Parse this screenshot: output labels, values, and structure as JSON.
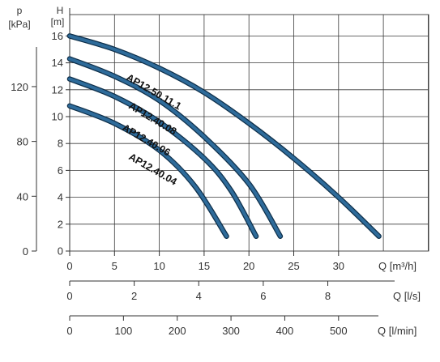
{
  "chart_data": {
    "type": "line",
    "title": "",
    "axis_left_outer": {
      "label_top": "p",
      "label_unit": "[kPa]",
      "ticks": [
        0,
        40,
        80,
        120
      ]
    },
    "axis_left_inner": {
      "label_top": "H",
      "label_unit": "[m]",
      "ylim": [
        0,
        17
      ],
      "ticks": [
        0,
        2,
        4,
        6,
        8,
        10,
        12,
        14,
        16
      ]
    },
    "x_axes": [
      {
        "label": "Q [m³/h]",
        "ticks": [
          0,
          5,
          10,
          15,
          20,
          25,
          30
        ]
      },
      {
        "label": "Q [l/s]",
        "ticks": [
          0,
          2,
          4,
          6,
          8
        ]
      },
      {
        "label": "Q [l/min]",
        "ticks": [
          0,
          100,
          200,
          300,
          400,
          500
        ]
      }
    ],
    "xlim_m3h": [
      0,
      39
    ],
    "grid": true,
    "series": [
      {
        "name": "AP12.50.11.1",
        "x": [
          0,
          5,
          10,
          15,
          20,
          25,
          30,
          34.5
        ],
        "y": [
          16.0,
          15.0,
          13.6,
          11.8,
          9.5,
          6.9,
          4.0,
          1.1
        ]
      },
      {
        "name": "AP12.40.08",
        "x": [
          0,
          5,
          10,
          15,
          20,
          23.5
        ],
        "y": [
          14.3,
          13.0,
          11.2,
          8.5,
          5.0,
          1.1
        ]
      },
      {
        "name": "AP12.40.06",
        "x": [
          0,
          5,
          10,
          15,
          18,
          20.8
        ],
        "y": [
          12.8,
          11.5,
          9.6,
          6.9,
          4.5,
          1.1
        ]
      },
      {
        "name": "AP12.40.04",
        "x": [
          0,
          5,
          10,
          14,
          17.5
        ],
        "y": [
          10.8,
          9.5,
          7.5,
          4.8,
          1.1
        ]
      }
    ]
  }
}
